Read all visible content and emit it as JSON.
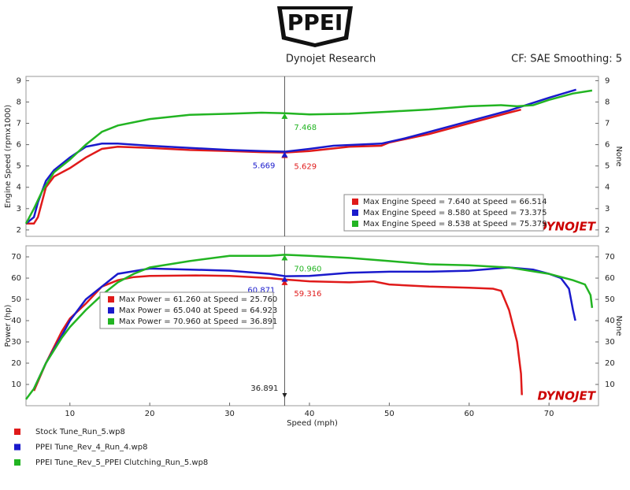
{
  "header": {
    "logo": "PPEI",
    "title": "Dynojet Research",
    "subtitle": "CF: SAE Smoothing: 5"
  },
  "watermark": "DYNOJET",
  "legend": [
    {
      "name": "Stock Tune_Run_5.wp8",
      "color": "#e01a1a"
    },
    {
      "name": "PPEI Tune_Rev_4_Run_4.wp8",
      "color": "#1a1acc"
    },
    {
      "name": "PPEI Tune_Rev_5_PPEI Clutching_Run_5.wp8",
      "color": "#22b422"
    }
  ],
  "chart_data": [
    {
      "type": "line",
      "y_label": "Engine Speed (rpmx1000)",
      "y2_label": "None",
      "xlim": [
        4.5,
        76.2
      ],
      "ylim": [
        1.7,
        9.2
      ],
      "yticks": [
        2,
        3,
        4,
        5,
        6,
        7,
        8,
        9
      ],
      "y2lim": [
        1.7,
        9.2
      ],
      "y2ticks": [
        2,
        3,
        4,
        5,
        6,
        7,
        8,
        9
      ],
      "cursor_x": 36.891,
      "legend_position": "lower right",
      "annotations": [
        {
          "text": "Max Engine Speed = 7.640 at Speed = 66.514",
          "color": "#e01a1a"
        },
        {
          "text": "Max Engine Speed = 8.580 at Speed = 73.375",
          "color": "#1a1acc"
        },
        {
          "text": "Max Engine Speed = 8.538 at Speed = 75.379",
          "color": "#22b422"
        }
      ],
      "series": [
        {
          "color": "#e01a1a",
          "cursor_value": {
            "value": 5.629,
            "label": "5.629"
          },
          "x": [
            4.5,
            5.5,
            6,
            7,
            8,
            10,
            12,
            14,
            16,
            20,
            25,
            30,
            34,
            37,
            40,
            45,
            49,
            50,
            55,
            60,
            65,
            66.5
          ],
          "values": [
            2.3,
            2.3,
            2.6,
            4.0,
            4.5,
            4.9,
            5.4,
            5.8,
            5.9,
            5.85,
            5.75,
            5.7,
            5.65,
            5.63,
            5.7,
            5.9,
            5.95,
            6.1,
            6.5,
            7.0,
            7.5,
            7.64
          ]
        },
        {
          "color": "#1a1acc",
          "cursor_value": {
            "value": 5.669,
            "label": "5.669"
          },
          "x": [
            4.5,
            5.5,
            6,
            7,
            8,
            10,
            12,
            14,
            16,
            20,
            25,
            30,
            34,
            37,
            40,
            43,
            46,
            49,
            52,
            55,
            60,
            65,
            70,
            73.4
          ],
          "values": [
            2.3,
            2.6,
            3.3,
            4.3,
            4.8,
            5.4,
            5.9,
            6.05,
            6.05,
            5.95,
            5.85,
            5.75,
            5.7,
            5.67,
            5.8,
            5.95,
            6.0,
            6.05,
            6.3,
            6.6,
            7.1,
            7.6,
            8.2,
            8.58
          ]
        },
        {
          "color": "#22b422",
          "cursor_value": {
            "value": 7.468,
            "label": "7.468"
          },
          "x": [
            4.5,
            5.5,
            6.5,
            8,
            10,
            12,
            14,
            16,
            20,
            25,
            30,
            34,
            37,
            40,
            45,
            50,
            55,
            60,
            64,
            66,
            68,
            70,
            73,
            75.4
          ],
          "values": [
            2.3,
            3.0,
            3.8,
            4.7,
            5.3,
            6.0,
            6.6,
            6.9,
            7.2,
            7.4,
            7.45,
            7.5,
            7.47,
            7.42,
            7.45,
            7.55,
            7.65,
            7.8,
            7.85,
            7.8,
            7.85,
            8.1,
            8.4,
            8.54
          ]
        }
      ]
    },
    {
      "type": "line",
      "y_label": "Power (hp)",
      "y2_label": "None",
      "x_label": "Speed (mph)",
      "xlim": [
        4.5,
        76.2
      ],
      "ylim": [
        0,
        75.2
      ],
      "yticks": [
        10,
        20,
        30,
        40,
        50,
        60,
        70
      ],
      "y2lim": [
        0,
        75.2
      ],
      "y2ticks": [
        10,
        20,
        30,
        40,
        50,
        60,
        70
      ],
      "xticks": [
        10,
        20,
        30,
        40,
        50,
        60,
        70
      ],
      "cursor_x": 36.891,
      "legend_position": "upper left",
      "annotations": [
        {
          "text": "Max Power = 61.260 at Speed = 25.760",
          "color": "#e01a1a"
        },
        {
          "text": "Max Power = 65.040 at Speed = 64.923",
          "color": "#1a1acc"
        },
        {
          "text": "Max Power = 70.960 at Speed = 36.891",
          "color": "#22b422"
        }
      ],
      "series": [
        {
          "color": "#e01a1a",
          "cursor_value": {
            "value": 59.316,
            "label": "59.316"
          },
          "x": [
            5.5,
            7,
            9,
            10,
            12,
            14,
            16,
            18,
            20,
            25.8,
            30,
            35,
            37,
            40,
            45,
            48,
            50,
            55,
            60,
            63,
            64,
            65,
            66,
            66.5,
            66.6
          ],
          "values": [
            7,
            20,
            35,
            41,
            48,
            56,
            59,
            60.5,
            61,
            61.26,
            61,
            60,
            59.3,
            58.5,
            58,
            58.5,
            57,
            56,
            55.5,
            55,
            54,
            45,
            30,
            15,
            5
          ]
        },
        {
          "color": "#1a1acc",
          "cursor_value": {
            "value": 60.871,
            "label": "60.871"
          },
          "x": [
            5.5,
            7,
            9,
            10,
            12,
            14,
            16,
            20,
            25,
            30,
            35,
            37,
            40,
            45,
            50,
            55,
            60,
            65,
            68,
            70,
            71.5,
            72.5,
            73,
            73.3
          ],
          "values": [
            8,
            20,
            33,
            40,
            50,
            56,
            62,
            64.5,
            64,
            63.5,
            62,
            60.9,
            61,
            62.5,
            63,
            63,
            63.5,
            65,
            64,
            62,
            60,
            55,
            45,
            40
          ]
        },
        {
          "color": "#22b422",
          "cursor_value": {
            "value": 70.96,
            "label": "70.960"
          },
          "x": [
            4.5,
            5.5,
            7,
            9,
            10,
            12,
            14,
            16,
            18,
            20,
            25,
            30,
            35,
            36.9,
            40,
            45,
            50,
            55,
            60,
            65,
            70,
            73,
            74.5,
            75.2,
            75.4
          ],
          "values": [
            3,
            8,
            20,
            32,
            37,
            45,
            52,
            58,
            62,
            65,
            68,
            70.5,
            70.5,
            70.96,
            70.5,
            69.5,
            68,
            66.5,
            66,
            65,
            62,
            59,
            57,
            52,
            46
          ]
        }
      ]
    }
  ]
}
